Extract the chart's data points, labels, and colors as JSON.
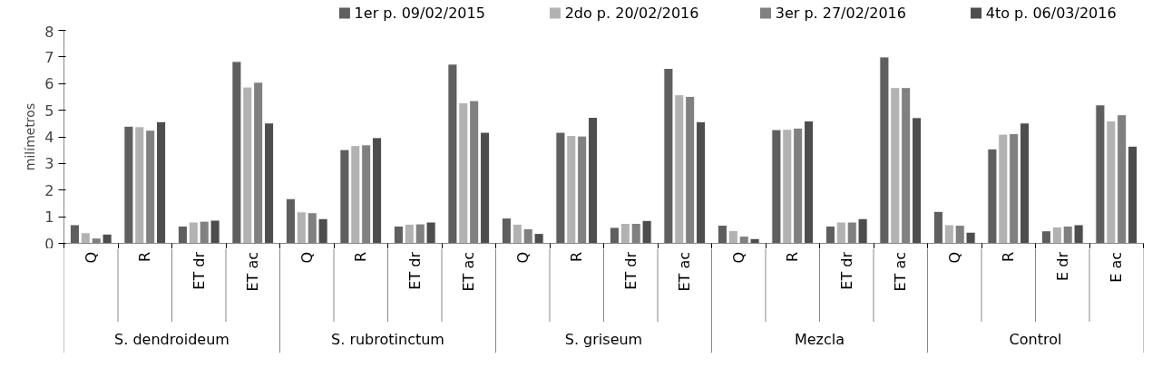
{
  "chart_data": {
    "type": "bar",
    "ylabel": "milímetros",
    "categories": [
      [
        "S. dendroideum",
        "Q"
      ],
      [
        null,
        "R"
      ],
      [
        null,
        "ET dr"
      ],
      [
        null,
        "ET ac"
      ],
      [
        "S. rubrotinctum",
        "Q"
      ],
      [
        null,
        "R"
      ],
      [
        null,
        "ET dr"
      ],
      [
        null,
        "ET ac"
      ],
      [
        "S. griseum",
        "Q"
      ],
      [
        null,
        "R"
      ],
      [
        null,
        "ET dr"
      ],
      [
        null,
        "ET ac"
      ],
      [
        "Mezcla",
        "Q"
      ],
      [
        null,
        "R"
      ],
      [
        null,
        "ET dr"
      ],
      [
        null,
        "ET ac"
      ],
      [
        "Control",
        "Q"
      ],
      [
        null,
        "R"
      ],
      [
        null,
        "E dr"
      ],
      [
        null,
        "E ac"
      ]
    ],
    "series": [
      {
        "name": "1er p. 09/02/2015",
        "color": "#5f5f5f",
        "values": [
          0.7,
          4.4,
          0.65,
          6.83,
          1.68,
          3.52,
          0.65,
          6.73,
          0.95,
          4.17,
          0.6,
          6.57,
          0.68,
          4.27,
          0.65,
          7.0,
          1.2,
          3.55,
          0.47,
          5.2
        ]
      },
      {
        "name": "2do p. 20/02/2016",
        "color": "#b2b2b2",
        "values": [
          0.4,
          4.38,
          0.8,
          5.87,
          1.18,
          3.67,
          0.72,
          5.28,
          0.72,
          4.05,
          0.75,
          5.58,
          0.48,
          4.28,
          0.8,
          5.85,
          0.7,
          4.1,
          0.62,
          4.6
        ]
      },
      {
        "name": "3er p. 27/02/2016",
        "color": "#808080",
        "values": [
          0.2,
          4.25,
          0.83,
          6.05,
          1.15,
          3.7,
          0.73,
          5.36,
          0.55,
          4.03,
          0.75,
          5.52,
          0.27,
          4.33,
          0.8,
          5.85,
          0.68,
          4.12,
          0.65,
          4.83
        ]
      },
      {
        "name": "4to p. 06/03/2016",
        "color": "#4d4d4d",
        "values": [
          0.35,
          4.57,
          0.87,
          4.52,
          0.93,
          3.97,
          0.8,
          4.17,
          0.37,
          4.73,
          0.86,
          4.57,
          0.18,
          4.6,
          0.93,
          4.72,
          0.42,
          4.52,
          0.7,
          3.65
        ]
      }
    ],
    "ylim": [
      0,
      8
    ],
    "yticks": [
      0,
      1,
      2,
      3,
      4,
      5,
      6,
      7,
      8
    ],
    "grid": false,
    "legend": "top"
  }
}
